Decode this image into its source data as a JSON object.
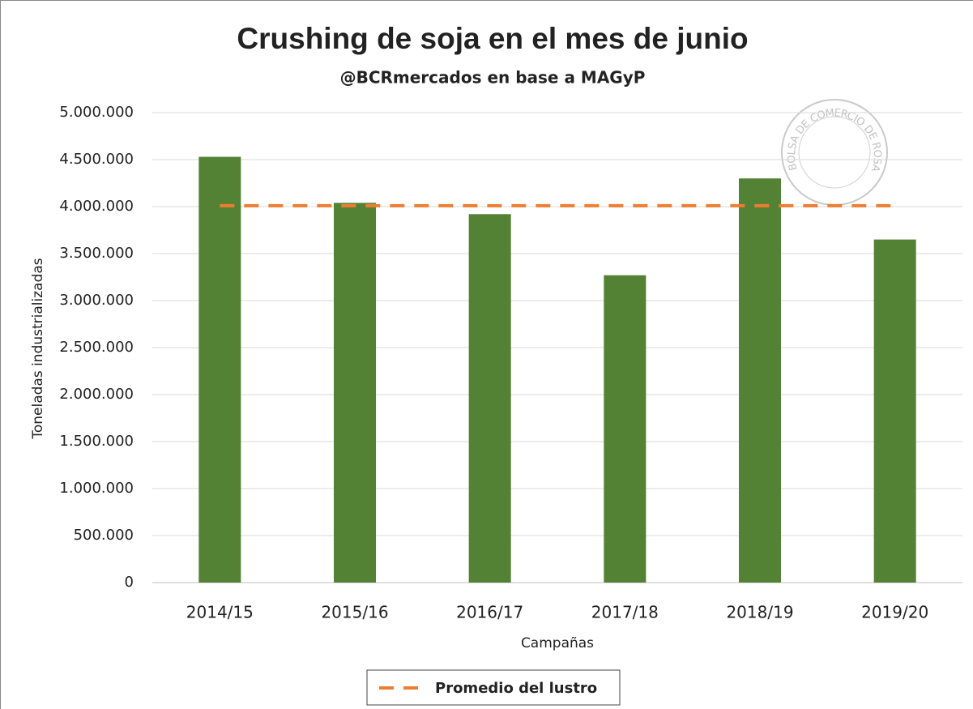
{
  "chart_data": {
    "type": "bar",
    "title": "Crushing de soja en el mes de junio",
    "subtitle": "@BCRmercados en base a MAGyP",
    "watermark": "BOLSA DE COMERCIO DE ROSARIO",
    "x_label": "Campañas",
    "y_label": "Toneladas industrializadas",
    "categories": [
      "2014/15",
      "2015/16",
      "2016/17",
      "2017/18",
      "2018/19",
      "2019/20"
    ],
    "series": [
      {
        "type": "bar",
        "color": "#548235",
        "values": [
          4530000,
          4040000,
          3920000,
          3270000,
          4300000,
          3650000
        ]
      },
      {
        "type": "line",
        "name": "Promedio del lustro",
        "color": "#ed7d31",
        "dashed": true,
        "values": [
          4010000,
          4010000,
          4010000,
          4010000,
          4010000,
          4010000
        ]
      }
    ],
    "ylim": [
      0,
      5000000
    ],
    "yticks": [
      0,
      {
        "value": 500000,
        "label": "500.000"
      },
      {
        "value": 1000000,
        "label": "1.000.000"
      },
      {
        "value": 1500000,
        "label": "1.500.000"
      },
      {
        "value": 2000000,
        "label": "2.000.000"
      },
      {
        "value": 2500000,
        "label": "2.500.000"
      },
      {
        "value": 3000000,
        "label": "3.000.000"
      },
      {
        "value": 3500000,
        "label": "3.500.000"
      },
      {
        "value": 4000000,
        "label": "4.000.000"
      },
      {
        "value": 4500000,
        "label": "4.500.000"
      },
      {
        "value": 5000000,
        "label": "5.000.000"
      }
    ],
    "grid": true,
    "legend": "bottom"
  }
}
